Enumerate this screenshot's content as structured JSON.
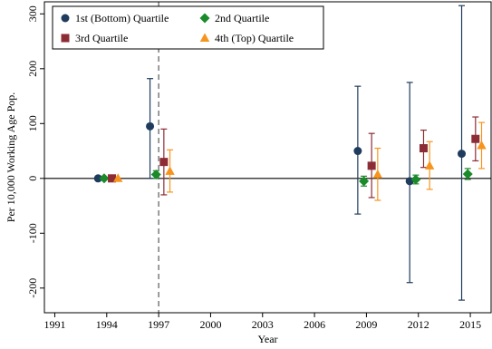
{
  "chart_data": {
    "type": "scatter",
    "title": "",
    "xlabel": "Year",
    "ylabel": "Per 10,000 Working Age Pop.",
    "xlim": [
      1990.4,
      1988.0
    ],
    "x_range": [
      1990.4,
      2016.2
    ],
    "ylim": [
      -245,
      322
    ],
    "x_ticks": [
      1991,
      1994,
      1997,
      2000,
      2003,
      2006,
      2009,
      2012,
      2015
    ],
    "y_ticks": [
      -200,
      -100,
      0,
      100,
      200,
      300
    ],
    "x_tick_labels": [
      "1991",
      "1994",
      "1997",
      "2000",
      "2003",
      "2006",
      "2009",
      "2012",
      "2015"
    ],
    "y_tick_labels": [
      "-200",
      "-100",
      "0",
      "100",
      "200",
      "300"
    ],
    "reference_line_y": 0,
    "reference_line_x": 1997,
    "grid": false,
    "legend_position": "top",
    "series": [
      {
        "name": "1st (Bottom) Quartile",
        "color": "#1f3b5e",
        "marker": "circle",
        "points": [
          {
            "x": 1993.5,
            "y": 0,
            "lo": 0,
            "hi": 0
          },
          {
            "x": 1996.5,
            "y": 95,
            "lo": 0,
            "hi": 182
          },
          {
            "x": 2008.5,
            "y": 50,
            "lo": -65,
            "hi": 168
          },
          {
            "x": 2011.5,
            "y": -5,
            "lo": -190,
            "hi": 175
          },
          {
            "x": 2014.5,
            "y": 45,
            "lo": -222,
            "hi": 315
          }
        ]
      },
      {
        "name": "2nd Quartile",
        "color": "#1a8a2a",
        "marker": "diamond",
        "points": [
          {
            "x": 1993.85,
            "y": 0,
            "lo": 0,
            "hi": 0
          },
          {
            "x": 1996.85,
            "y": 7,
            "lo": 0,
            "hi": 14
          },
          {
            "x": 2008.85,
            "y": -5,
            "lo": -14,
            "hi": 4
          },
          {
            "x": 2011.85,
            "y": -2,
            "lo": -10,
            "hi": 6
          },
          {
            "x": 2014.85,
            "y": 8,
            "lo": -2,
            "hi": 18
          }
        ]
      },
      {
        "name": "3rd Quartile",
        "color": "#8c2d35",
        "marker": "square",
        "points": [
          {
            "x": 1994.3,
            "y": 0,
            "lo": 0,
            "hi": 0
          },
          {
            "x": 1997.3,
            "y": 30,
            "lo": -30,
            "hi": 90
          },
          {
            "x": 2009.3,
            "y": 23,
            "lo": -35,
            "hi": 82
          },
          {
            "x": 2012.3,
            "y": 55,
            "lo": 20,
            "hi": 88
          },
          {
            "x": 2015.3,
            "y": 72,
            "lo": 32,
            "hi": 112
          }
        ]
      },
      {
        "name": "4th (Top) Quartile",
        "color": "#f7941d",
        "marker": "triangle",
        "points": [
          {
            "x": 1994.65,
            "y": 0,
            "lo": 0,
            "hi": 0
          },
          {
            "x": 1997.65,
            "y": 13,
            "lo": -25,
            "hi": 52
          },
          {
            "x": 2009.65,
            "y": 7,
            "lo": -40,
            "hi": 55
          },
          {
            "x": 2012.65,
            "y": 23,
            "lo": -20,
            "hi": 67
          },
          {
            "x": 2015.65,
            "y": 60,
            "lo": 18,
            "hi": 102
          }
        ]
      }
    ]
  }
}
